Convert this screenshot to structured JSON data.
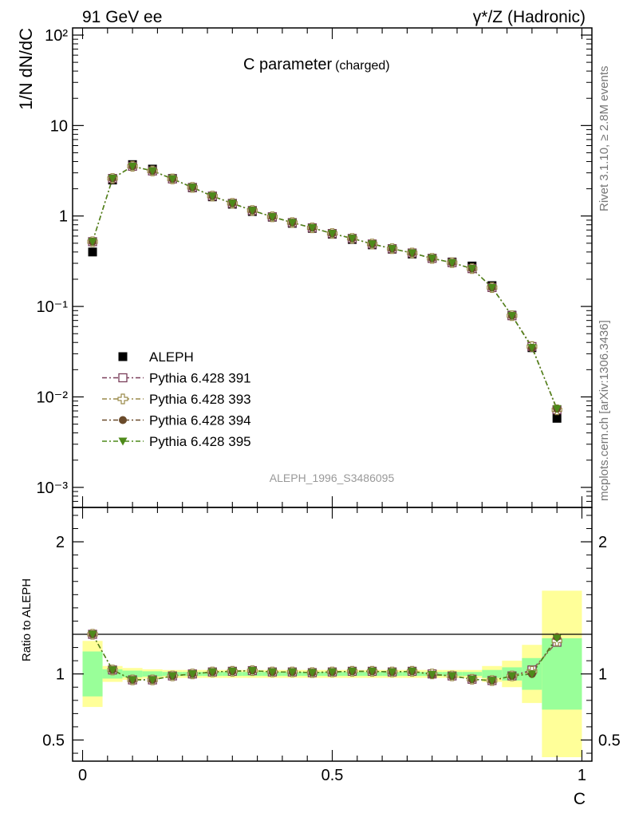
{
  "header": {
    "left": "91 GeV ee",
    "right": "γ*/Z (Hadronic)"
  },
  "side_labels": {
    "rivet": "Rivet 3.1.10, ≥ 2.8M events",
    "mcplots": "mcplots.cern.ch [arXiv:1306.3436]"
  },
  "main_title": "C parameter",
  "main_title_suffix": "(charged)",
  "analysis_tag": "ALEPH_1996_S3486095",
  "colors": {
    "data": "#000000",
    "p391": "#7a3e5a",
    "p393": "#9a8a4a",
    "p394": "#6a4a2a",
    "p395": "#4e8a1a",
    "band_inner": "#99ff99",
    "band_outer": "#ffff99"
  },
  "chart_data": [
    {
      "type": "line",
      "ylabel": "1/N dN/dC",
      "yscale": "log",
      "ylim": [
        0.0006,
        120
      ],
      "xlim": [
        -0.02,
        1.02
      ],
      "y_tick_labels": [
        "10⁻³",
        "10⁻²",
        "10⁻¹",
        "1",
        "10",
        "10²"
      ],
      "legend": {
        "placement": "center-left",
        "entries": [
          "ALEPH",
          "Pythia 6.428 391",
          "Pythia 6.428 393",
          "Pythia 6.428 394",
          "Pythia 6.428 395"
        ]
      },
      "x": [
        0.02,
        0.06,
        0.1,
        0.14,
        0.18,
        0.22,
        0.26,
        0.3,
        0.34,
        0.38,
        0.42,
        0.46,
        0.5,
        0.54,
        0.58,
        0.62,
        0.66,
        0.7,
        0.74,
        0.78,
        0.82,
        0.86,
        0.9,
        0.95
      ],
      "x_edges": [
        0.0,
        0.04,
        0.08,
        0.12,
        0.16,
        0.2,
        0.24,
        0.28,
        0.32,
        0.36,
        0.4,
        0.44,
        0.48,
        0.52,
        0.56,
        0.6,
        0.64,
        0.68,
        0.72,
        0.76,
        0.8,
        0.84,
        0.88,
        0.92,
        1.0
      ],
      "data": [
        0.4,
        2.5,
        3.7,
        3.3,
        2.6,
        2.05,
        1.63,
        1.35,
        1.12,
        0.97,
        0.83,
        0.73,
        0.63,
        0.55,
        0.48,
        0.43,
        0.38,
        0.34,
        0.31,
        0.28,
        0.17,
        0.08,
        0.035,
        0.0058
      ],
      "series": [
        {
          "name": "Pythia 6.428 391",
          "values": [
            0.52,
            2.6,
            3.55,
            3.15,
            2.57,
            2.07,
            1.66,
            1.38,
            1.15,
            0.98,
            0.845,
            0.74,
            0.64,
            0.565,
            0.49,
            0.435,
            0.39,
            0.34,
            0.305,
            0.262,
            0.162,
            0.079,
            0.036,
            0.0072
          ]
        },
        {
          "name": "Pythia 6.428 393",
          "values": [
            0.52,
            2.6,
            3.55,
            3.15,
            2.57,
            2.07,
            1.66,
            1.38,
            1.15,
            0.98,
            0.845,
            0.74,
            0.64,
            0.565,
            0.49,
            0.435,
            0.39,
            0.34,
            0.305,
            0.262,
            0.162,
            0.079,
            0.036,
            0.0072
          ]
        },
        {
          "name": "Pythia 6.428 394",
          "values": [
            0.52,
            2.6,
            3.55,
            3.15,
            2.57,
            2.07,
            1.66,
            1.38,
            1.15,
            0.98,
            0.845,
            0.74,
            0.64,
            0.565,
            0.49,
            0.435,
            0.39,
            0.34,
            0.305,
            0.262,
            0.162,
            0.079,
            0.035,
            0.0074
          ]
        },
        {
          "name": "Pythia 6.428 395",
          "values": [
            0.52,
            2.6,
            3.55,
            3.15,
            2.57,
            2.07,
            1.66,
            1.38,
            1.15,
            0.98,
            0.845,
            0.74,
            0.64,
            0.565,
            0.49,
            0.435,
            0.39,
            0.34,
            0.305,
            0.262,
            0.162,
            0.079,
            0.035,
            0.0074
          ]
        }
      ]
    },
    {
      "type": "line",
      "ylabel": "Ratio to ALEPH",
      "xlabel": "C",
      "ylim": [
        0.34,
        2.26
      ],
      "xlim": [
        -0.02,
        1.02
      ],
      "x_tick_labels": [
        "0",
        "0.5",
        "1"
      ],
      "y_tick_labels": [
        "0.5",
        "1",
        "2"
      ],
      "x": [
        0.02,
        0.06,
        0.1,
        0.14,
        0.18,
        0.22,
        0.26,
        0.3,
        0.34,
        0.38,
        0.42,
        0.46,
        0.5,
        0.54,
        0.58,
        0.62,
        0.66,
        0.7,
        0.74,
        0.78,
        0.82,
        0.86,
        0.9,
        0.95
      ],
      "x_edges": [
        0.0,
        0.04,
        0.08,
        0.12,
        0.16,
        0.2,
        0.24,
        0.28,
        0.32,
        0.36,
        0.4,
        0.44,
        0.48,
        0.52,
        0.56,
        0.6,
        0.64,
        0.68,
        0.72,
        0.76,
        0.8,
        0.84,
        0.88,
        0.92,
        1.0
      ],
      "band_inner": [
        0.17,
        0.035,
        0.025,
        0.02,
        0.015,
        0.015,
        0.015,
        0.015,
        0.015,
        0.015,
        0.015,
        0.015,
        0.015,
        0.015,
        0.015,
        0.015,
        0.015,
        0.015,
        0.015,
        0.015,
        0.03,
        0.05,
        0.12,
        0.27
      ],
      "band_outer": [
        0.25,
        0.06,
        0.045,
        0.035,
        0.03,
        0.03,
        0.03,
        0.03,
        0.03,
        0.03,
        0.03,
        0.03,
        0.03,
        0.03,
        0.03,
        0.03,
        0.03,
        0.03,
        0.03,
        0.03,
        0.06,
        0.1,
        0.22,
        0.63
      ],
      "series": [
        {
          "name": "Pythia 6.428 391",
          "values": [
            1.3,
            1.03,
            0.955,
            0.955,
            0.985,
            1.0,
            1.015,
            1.02,
            1.025,
            1.015,
            1.015,
            1.01,
            1.015,
            1.02,
            1.02,
            1.015,
            1.02,
            1.0,
            0.985,
            0.96,
            0.95,
            0.985,
            1.03,
            1.24
          ]
        },
        {
          "name": "Pythia 6.428 393",
          "values": [
            1.3,
            1.03,
            0.955,
            0.955,
            0.985,
            1.0,
            1.015,
            1.02,
            1.025,
            1.015,
            1.015,
            1.01,
            1.015,
            1.02,
            1.02,
            1.015,
            1.02,
            1.0,
            0.985,
            0.96,
            0.95,
            0.985,
            1.02,
            1.25
          ]
        },
        {
          "name": "Pythia 6.428 394",
          "values": [
            1.3,
            1.03,
            0.955,
            0.955,
            0.985,
            1.0,
            1.015,
            1.02,
            1.025,
            1.015,
            1.015,
            1.01,
            1.015,
            1.02,
            1.02,
            1.015,
            1.02,
            0.995,
            0.985,
            0.96,
            0.95,
            0.985,
            1.0,
            1.28
          ]
        },
        {
          "name": "Pythia 6.428 395",
          "values": [
            1.3,
            1.03,
            0.955,
            0.955,
            0.985,
            1.0,
            1.015,
            1.02,
            1.025,
            1.015,
            1.015,
            1.01,
            1.015,
            1.02,
            1.02,
            1.015,
            1.02,
            0.995,
            0.985,
            0.96,
            0.95,
            0.985,
            1.0,
            1.27
          ]
        }
      ]
    }
  ]
}
